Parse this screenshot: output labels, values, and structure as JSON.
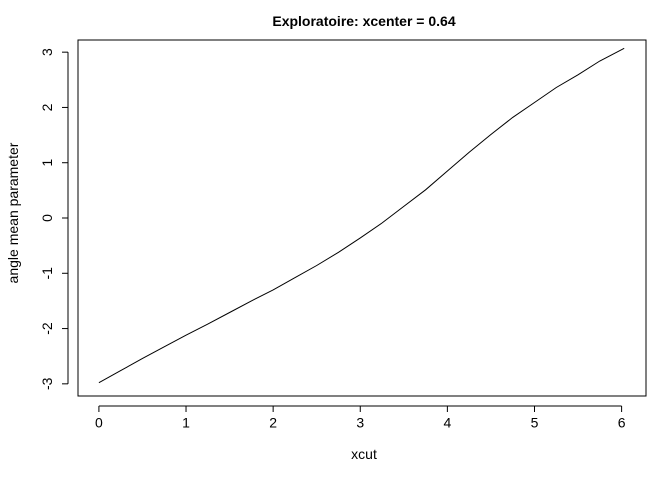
{
  "chart_data": {
    "type": "line",
    "title": "Exploratoire: xcenter = 0.64",
    "xlabel": "xcut",
    "ylabel": "angle mean parameter",
    "xlim": [
      -0.24,
      6.28
    ],
    "ylim": [
      -3.22,
      3.22
    ],
    "xticks": [
      0,
      1,
      2,
      3,
      4,
      5,
      6
    ],
    "yticks": [
      -3,
      -2,
      -1,
      0,
      1,
      2,
      3
    ],
    "grid": false,
    "line_color": "#000000",
    "series": [
      {
        "x": [
          0.0,
          0.25,
          0.5,
          0.75,
          1.0,
          1.25,
          1.5,
          1.75,
          2.0,
          2.25,
          2.5,
          2.75,
          3.0,
          3.25,
          3.5,
          3.75,
          4.0,
          4.25,
          4.5,
          4.75,
          5.0,
          5.25,
          5.5,
          5.75,
          6.03
        ],
        "y": [
          -2.98,
          -2.76,
          -2.54,
          -2.33,
          -2.12,
          -1.92,
          -1.71,
          -1.5,
          -1.3,
          -1.08,
          -0.86,
          -0.62,
          -0.36,
          -0.09,
          0.21,
          0.51,
          0.85,
          1.19,
          1.51,
          1.82,
          2.09,
          2.36,
          2.59,
          2.84,
          3.07
        ]
      }
    ]
  }
}
